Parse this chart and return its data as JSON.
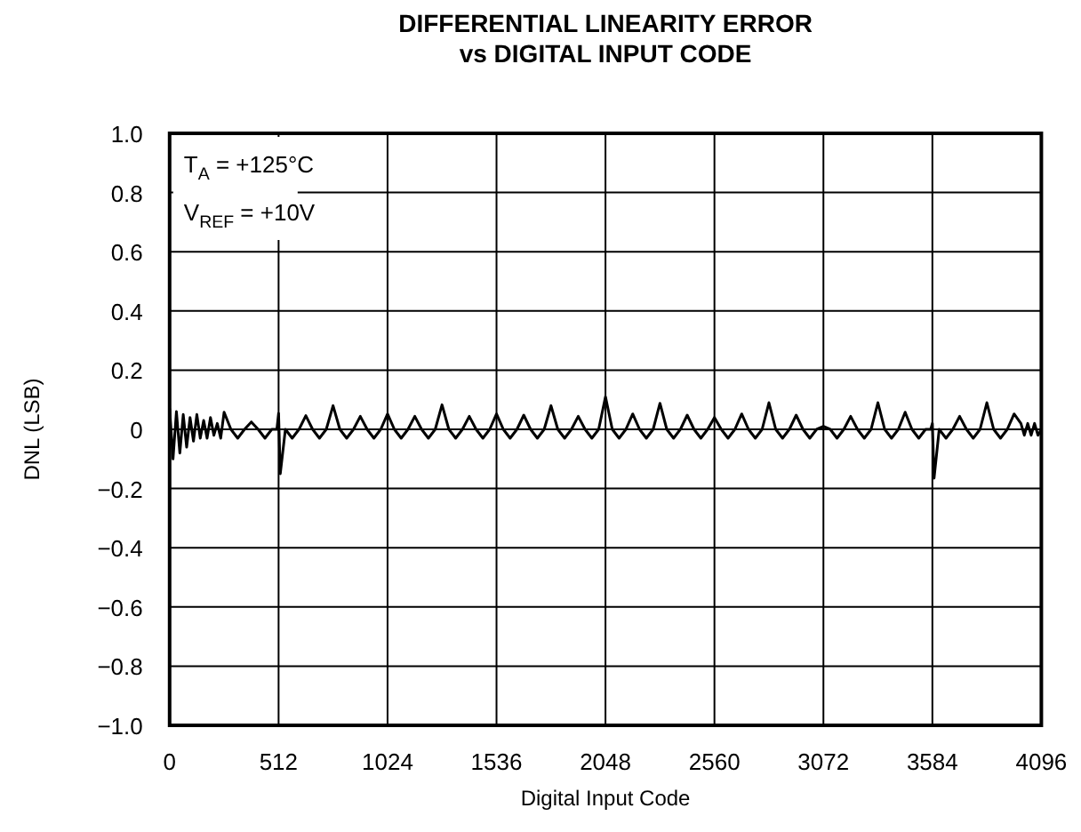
{
  "chart_data": {
    "type": "line",
    "title": "DIFFERENTIAL LINEARITY ERROR",
    "subtitle": "vs DIGITAL INPUT CODE",
    "xlabel": "Digital Input Code",
    "ylabel": "DNL (LSB)",
    "annotations": [
      "T$_{A}$ = +125°C",
      "V$_{REF}$ = +10V"
    ],
    "xlim": [
      0,
      4096
    ],
    "xticks": [
      0,
      512,
      1024,
      1536,
      2048,
      2560,
      3072,
      3584,
      4096
    ],
    "ylim": [
      -1,
      1
    ],
    "yticks": [
      {
        "value": -1,
        "label": "−1.0"
      },
      {
        "value": -0.8,
        "label": "−0.8"
      },
      {
        "value": -0.6,
        "label": "−0.6"
      },
      {
        "value": -0.4,
        "label": "−0.4"
      },
      {
        "value": -0.2,
        "label": "−0.2"
      },
      0,
      0.2,
      0.4,
      0.6,
      0.8,
      {
        "value": 1,
        "label": "1.0"
      }
    ],
    "grid": true,
    "line_style": "solid",
    "series": [
      {
        "color": "#000000",
        "x": [
          0,
          16,
          32,
          48,
          64,
          80,
          96,
          112,
          128,
          144,
          160,
          176,
          192,
          208,
          224,
          240,
          256,
          288,
          320,
          352,
          384,
          416,
          448,
          480,
          504,
          512,
          520,
          544,
          576,
          608,
          640,
          672,
          704,
          736,
          768,
          800,
          832,
          864,
          896,
          928,
          960,
          992,
          1024,
          1056,
          1088,
          1120,
          1152,
          1184,
          1216,
          1248,
          1280,
          1312,
          1344,
          1376,
          1408,
          1440,
          1472,
          1504,
          1536,
          1568,
          1600,
          1632,
          1664,
          1696,
          1728,
          1760,
          1792,
          1824,
          1856,
          1888,
          1920,
          1952,
          1984,
          2016,
          2048,
          2080,
          2112,
          2144,
          2176,
          2208,
          2240,
          2272,
          2304,
          2336,
          2368,
          2400,
          2432,
          2464,
          2496,
          2528,
          2560,
          2592,
          2624,
          2656,
          2688,
          2720,
          2752,
          2784,
          2816,
          2848,
          2880,
          2912,
          2944,
          2976,
          3008,
          3040,
          3072,
          3104,
          3136,
          3168,
          3200,
          3232,
          3264,
          3296,
          3328,
          3360,
          3392,
          3424,
          3456,
          3488,
          3520,
          3552,
          3576,
          3584,
          3592,
          3616,
          3648,
          3680,
          3712,
          3744,
          3776,
          3808,
          3840,
          3872,
          3904,
          3936,
          3968,
          4000,
          4016,
          4032,
          4048,
          4064,
          4080,
          4096
        ],
        "values": [
          0.07,
          -0.1,
          0.06,
          -0.08,
          0.05,
          -0.06,
          0.04,
          -0.04,
          0.05,
          -0.03,
          0.03,
          -0.03,
          0.04,
          -0.02,
          0.02,
          -0.03,
          0.058,
          0,
          -0.03,
          0,
          0.025,
          0,
          -0.03,
          0,
          0,
          0.054,
          -0.15,
          0,
          -0.03,
          0,
          0.046,
          0,
          -0.03,
          0,
          0.08,
          0,
          -0.03,
          0,
          0.044,
          0,
          -0.03,
          0,
          0.052,
          0,
          -0.03,
          0,
          0.044,
          0,
          -0.03,
          0,
          0.083,
          0,
          -0.03,
          0,
          0.044,
          0,
          -0.03,
          0,
          0.052,
          0,
          -0.03,
          0,
          0.048,
          0,
          -0.03,
          0,
          0.08,
          0,
          -0.03,
          0,
          0.044,
          0,
          -0.03,
          0,
          0.11,
          0,
          -0.03,
          0,
          0.052,
          0,
          -0.03,
          0,
          0.088,
          0,
          -0.03,
          0,
          0.048,
          0,
          -0.03,
          0,
          0.04,
          0,
          -0.03,
          0,
          0.052,
          0,
          -0.03,
          0,
          0.09,
          0,
          -0.03,
          0,
          0.048,
          0,
          -0.03,
          0,
          0.01,
          0,
          -0.03,
          0,
          0.044,
          0,
          -0.03,
          0,
          0.09,
          0,
          -0.03,
          0,
          0.058,
          0,
          -0.03,
          0,
          0,
          0.02,
          -0.165,
          0,
          -0.03,
          0,
          0.044,
          0,
          -0.03,
          0,
          0.09,
          0,
          -0.03,
          0,
          0.052,
          0.02,
          -0.02,
          0.02,
          -0.02,
          0.02,
          -0.02,
          0
        ]
      }
    ]
  }
}
